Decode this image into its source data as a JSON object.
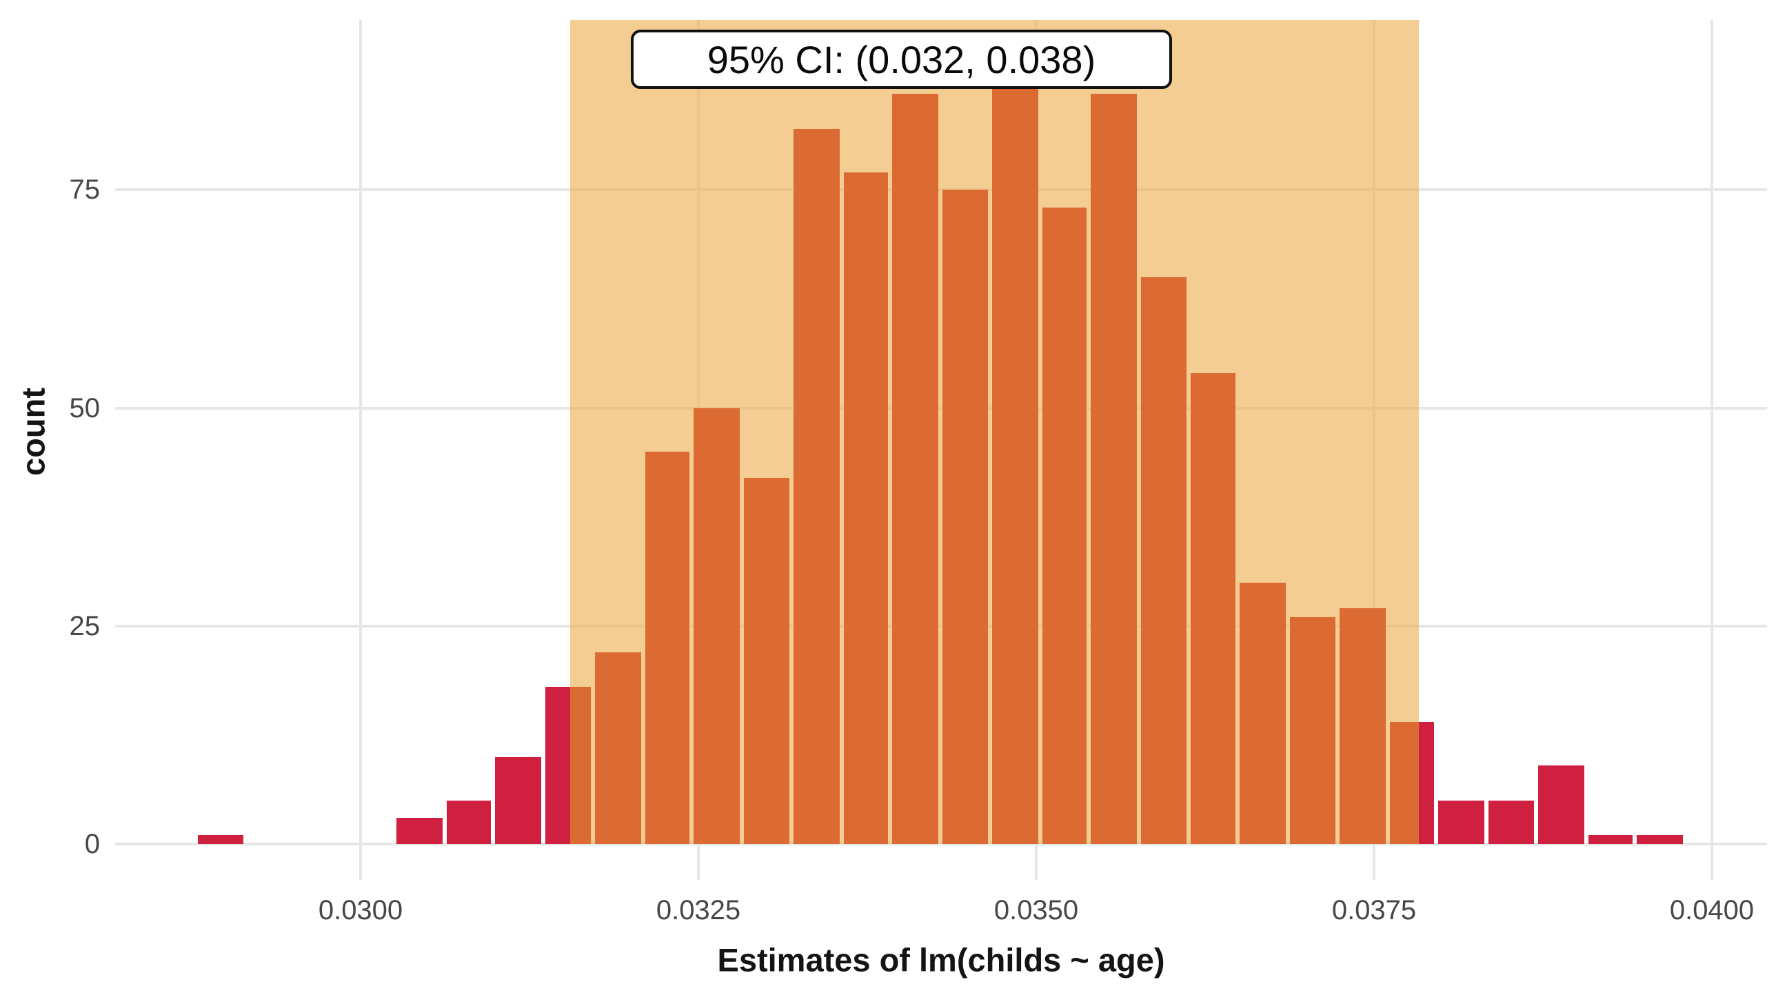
{
  "chart_data": {
    "type": "bar",
    "subtype": "histogram",
    "title": "",
    "xlabel": "Estimates of lm(childs ~ age)",
    "ylabel": "count",
    "x_ticks": [
      0.03,
      0.0325,
      0.035,
      0.0375,
      0.04
    ],
    "x_tick_labels": [
      "0.0300",
      "0.0325",
      "0.0350",
      "0.0375",
      "0.0400"
    ],
    "y_ticks": [
      0,
      25,
      50,
      75
    ],
    "y_tick_labels": [
      "0",
      "25",
      "50",
      "75"
    ],
    "xlim": [
      0.02835,
      0.04042
    ],
    "ylim": [
      0,
      94
    ],
    "grid": true,
    "legend": "none",
    "annotation": {
      "text": "95% CI: (0.032, 0.038)",
      "ci_low": 0.032,
      "ci_high": 0.038
    },
    "ci_band": {
      "from": 0.03155,
      "to": 0.03783
    },
    "colors": {
      "inside_ci_bar": "#dc6a33",
      "outside_ci_bar": "#d02040",
      "band_base": "#ecaf4e",
      "band_alpha": 0.62,
      "gridline": "#e6e6e6",
      "tick_label": "#474747",
      "axis_title": "#141414"
    },
    "bars": [
      {
        "x0": 0.02878,
        "x1": 0.02915,
        "count": 1,
        "region": "out"
      },
      {
        "x0": 0.03025,
        "x1": 0.03062,
        "count": 3,
        "region": "out"
      },
      {
        "x0": 0.03062,
        "x1": 0.03098,
        "count": 5,
        "region": "out"
      },
      {
        "x0": 0.03098,
        "x1": 0.03135,
        "count": 10,
        "region": "out"
      },
      {
        "x0": 0.03135,
        "x1": 0.03172,
        "count": 18,
        "region": "split"
      },
      {
        "x0": 0.03172,
        "x1": 0.03209,
        "count": 22,
        "region": "in"
      },
      {
        "x0": 0.03209,
        "x1": 0.03245,
        "count": 45,
        "region": "in"
      },
      {
        "x0": 0.03245,
        "x1": 0.03282,
        "count": 50,
        "region": "in"
      },
      {
        "x0": 0.03282,
        "x1": 0.03319,
        "count": 42,
        "region": "in"
      },
      {
        "x0": 0.03319,
        "x1": 0.03356,
        "count": 82,
        "region": "in"
      },
      {
        "x0": 0.03356,
        "x1": 0.03392,
        "count": 77,
        "region": "in"
      },
      {
        "x0": 0.03392,
        "x1": 0.03429,
        "count": 86,
        "region": "in"
      },
      {
        "x0": 0.03429,
        "x1": 0.03466,
        "count": 75,
        "region": "in"
      },
      {
        "x0": 0.03466,
        "x1": 0.03503,
        "count": 87,
        "region": "in"
      },
      {
        "x0": 0.03503,
        "x1": 0.03539,
        "count": 73,
        "region": "in"
      },
      {
        "x0": 0.03539,
        "x1": 0.03576,
        "count": 86,
        "region": "in"
      },
      {
        "x0": 0.03576,
        "x1": 0.03613,
        "count": 65,
        "region": "in"
      },
      {
        "x0": 0.03613,
        "x1": 0.03649,
        "count": 54,
        "region": "in"
      },
      {
        "x0": 0.03649,
        "x1": 0.03686,
        "count": 30,
        "region": "in"
      },
      {
        "x0": 0.03686,
        "x1": 0.03723,
        "count": 26,
        "region": "in"
      },
      {
        "x0": 0.03723,
        "x1": 0.0376,
        "count": 27,
        "region": "in"
      },
      {
        "x0": 0.0376,
        "x1": 0.03796,
        "count": 14,
        "region": "split"
      },
      {
        "x0": 0.03796,
        "x1": 0.03833,
        "count": 5,
        "region": "out"
      },
      {
        "x0": 0.03833,
        "x1": 0.0387,
        "count": 5,
        "region": "out"
      },
      {
        "x0": 0.0387,
        "x1": 0.03907,
        "count": 9,
        "region": "out"
      },
      {
        "x0": 0.03907,
        "x1": 0.03943,
        "count": 1,
        "region": "out"
      },
      {
        "x0": 0.03943,
        "x1": 0.0398,
        "count": 1,
        "region": "out"
      }
    ]
  }
}
